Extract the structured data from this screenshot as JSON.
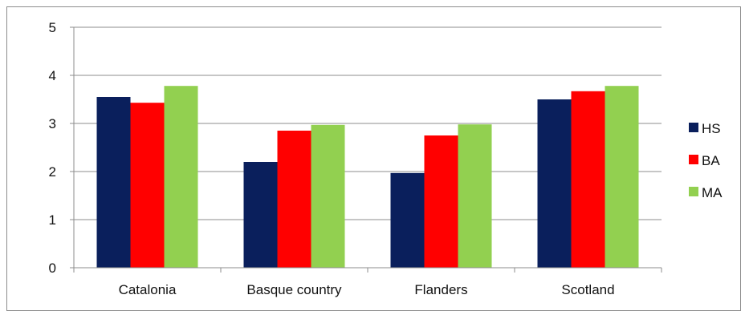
{
  "chart_data": {
    "type": "bar",
    "categories": [
      "Catalonia",
      "Basque country",
      "Flanders",
      "Scotland"
    ],
    "series": [
      {
        "name": "HS",
        "color": "#0a1f5c",
        "values": [
          3.55,
          2.2,
          1.97,
          3.5
        ]
      },
      {
        "name": "BA",
        "color": "#ff0000",
        "values": [
          3.43,
          2.85,
          2.75,
          3.67
        ]
      },
      {
        "name": "MA",
        "color": "#92d050",
        "values": [
          3.78,
          2.97,
          2.98,
          3.78
        ]
      }
    ],
    "title": "",
    "xlabel": "",
    "ylabel": "",
    "ylim": [
      0,
      5
    ],
    "yticks": [
      "0",
      "1",
      "2",
      "3",
      "4",
      "5"
    ],
    "grid": true,
    "legend_position": "right"
  }
}
